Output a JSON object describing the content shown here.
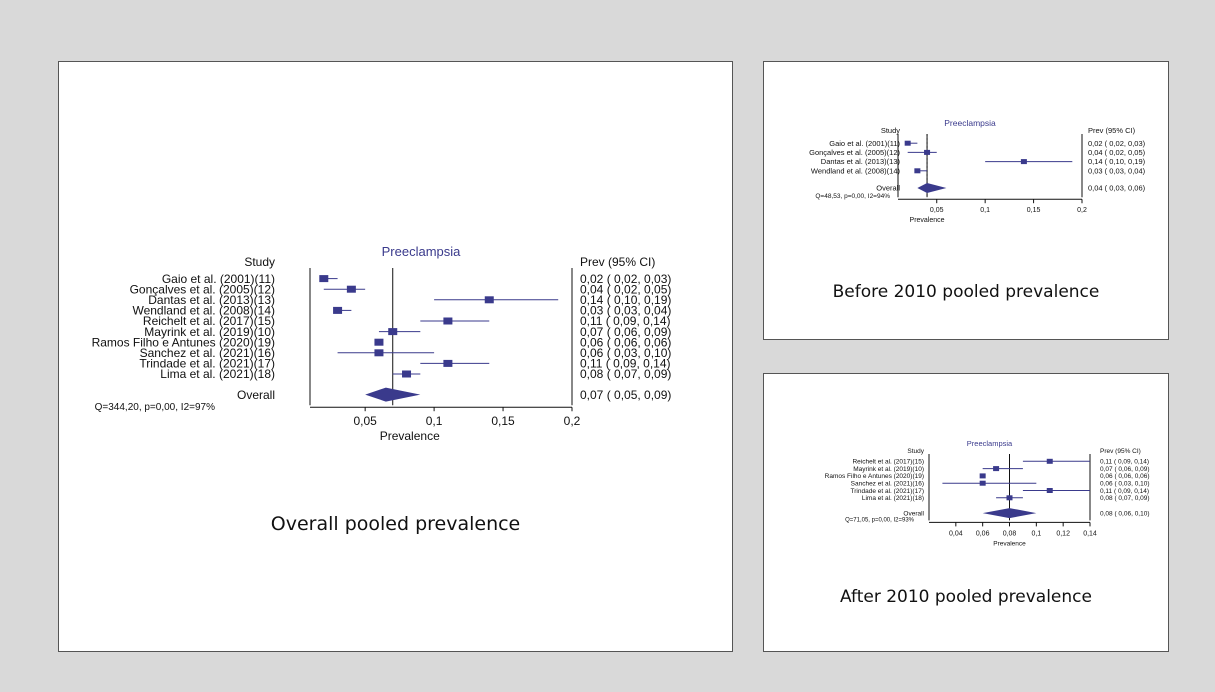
{
  "colors": {
    "page_bg": "#d9d9d9",
    "panel_bg": "#ffffff",
    "marker": "#3a3a8c",
    "title_text": "#3a3a8c",
    "ink": "#111111"
  },
  "chart_data": [
    {
      "type": "forest",
      "panel": "main",
      "title": "Preeclampsia",
      "caption": "Overall pooled prevalence",
      "study_header": "Study",
      "estimate_header": "Prev (95% CI)",
      "xlabel": "Prevalence",
      "xlim": [
        0.01,
        0.2
      ],
      "xticks": [
        0.05,
        0.1,
        0.15,
        0.2
      ],
      "xtick_labels": [
        "0,05",
        "0,1",
        "0,15",
        "0,2"
      ],
      "null_line": 0.07,
      "pooled_line": 0.065,
      "studies": [
        {
          "label": "Gaio et al. (2001)(11)",
          "est": 0.02,
          "lo": 0.02,
          "hi": 0.03,
          "ci_text": "0,02  ( 0,02, 0,03)"
        },
        {
          "label": "Gonçalves et al. (2005)(12)",
          "est": 0.04,
          "lo": 0.02,
          "hi": 0.05,
          "ci_text": "0,04  ( 0,02, 0,05)"
        },
        {
          "label": "Dantas et al. (2013)(13)",
          "est": 0.14,
          "lo": 0.1,
          "hi": 0.19,
          "ci_text": "0,14  ( 0,10, 0,19)"
        },
        {
          "label": "Wendland et al. (2008)(14)",
          "est": 0.03,
          "lo": 0.03,
          "hi": 0.04,
          "ci_text": "0,03  ( 0,03, 0,04)"
        },
        {
          "label": "Reichelt et al. (2017)(15)",
          "est": 0.11,
          "lo": 0.09,
          "hi": 0.14,
          "ci_text": "0,11  ( 0,09, 0,14)"
        },
        {
          "label": "Mayrink et al. (2019)(10)",
          "est": 0.07,
          "lo": 0.06,
          "hi": 0.09,
          "ci_text": "0,07  ( 0,06, 0,09)"
        },
        {
          "label": "Ramos Filho e Antunes (2020)(19)",
          "est": 0.06,
          "lo": 0.06,
          "hi": 0.06,
          "ci_text": "0,06  ( 0,06, 0,06)"
        },
        {
          "label": "Sanchez et al. (2021)(16)",
          "est": 0.06,
          "lo": 0.03,
          "hi": 0.1,
          "ci_text": "0,06  ( 0,03, 0,10)"
        },
        {
          "label": "Trindade et al. (2021)(17)",
          "est": 0.11,
          "lo": 0.09,
          "hi": 0.14,
          "ci_text": "0,11  ( 0,09, 0,14)"
        },
        {
          "label": "Lima et al. (2021)(18)",
          "est": 0.08,
          "lo": 0.07,
          "hi": 0.09,
          "ci_text": "0,08  ( 0,07, 0,09)"
        }
      ],
      "overall": {
        "label": "Overall",
        "est": 0.065,
        "lo": 0.05,
        "hi": 0.09,
        "ci_text": "0,07  ( 0,05, 0,09)"
      },
      "heterogeneity": "Q=344,20, p=0,00, I2=97%"
    },
    {
      "type": "forest",
      "panel": "before",
      "title": "Preeclampsia",
      "caption": "Before 2010 pooled prevalence",
      "study_header": "Study",
      "estimate_header": "Prev (95% CI)",
      "xlabel": "Prevalence",
      "xlim": [
        0.01,
        0.2
      ],
      "xticks": [
        0.05,
        0.1,
        0.15,
        0.2
      ],
      "xtick_labels": [
        "0,05",
        "0,1",
        "0,15",
        "0,2"
      ],
      "null_line": 0.04,
      "pooled_line": 0.04,
      "studies": [
        {
          "label": "Gaio et al. (2001)(11)",
          "est": 0.02,
          "lo": 0.02,
          "hi": 0.03,
          "ci_text": "0,02  ( 0,02, 0,03)"
        },
        {
          "label": "Gonçalves et al. (2005)(12)",
          "est": 0.04,
          "lo": 0.02,
          "hi": 0.05,
          "ci_text": "0,04  ( 0,02, 0,05)"
        },
        {
          "label": "Dantas et al. (2013)(13)",
          "est": 0.14,
          "lo": 0.1,
          "hi": 0.19,
          "ci_text": "0,14  ( 0,10, 0,19)"
        },
        {
          "label": "Wendland et al. (2008)(14)",
          "est": 0.03,
          "lo": 0.03,
          "hi": 0.04,
          "ci_text": "0,03  ( 0,03, 0,04)"
        }
      ],
      "overall": {
        "label": "Overall",
        "est": 0.04,
        "lo": 0.03,
        "hi": 0.06,
        "ci_text": "0,04  ( 0,03, 0,06)"
      },
      "heterogeneity": "Q=48,53, p=0,00, I2=94%"
    },
    {
      "type": "forest",
      "panel": "after",
      "title": "Preeclampsia",
      "caption": "After 2010 pooled prevalence",
      "study_header": "Study",
      "estimate_header": "Prev (95% CI)",
      "xlabel": "Prevalence",
      "xlim": [
        0.02,
        0.14
      ],
      "xticks": [
        0.04,
        0.06,
        0.08,
        0.1,
        0.12,
        0.14
      ],
      "xtick_labels": [
        "0,04",
        "0,06",
        "0,08",
        "0,1",
        "0,12",
        "0,14"
      ],
      "null_line": 0.08,
      "pooled_line": 0.08,
      "studies": [
        {
          "label": "Reichelt et al. (2017)(15)",
          "est": 0.11,
          "lo": 0.09,
          "hi": 0.14,
          "ci_text": "0,11  ( 0,09, 0,14)"
        },
        {
          "label": "Mayrink et al. (2019)(10)",
          "est": 0.07,
          "lo": 0.06,
          "hi": 0.09,
          "ci_text": "0,07  ( 0,06, 0,09)"
        },
        {
          "label": "Ramos Filho e Antunes (2020)(19)",
          "est": 0.06,
          "lo": 0.06,
          "hi": 0.06,
          "ci_text": "0,06  ( 0,06, 0,06)"
        },
        {
          "label": "Sanchez et al. (2021)(16)",
          "est": 0.06,
          "lo": 0.03,
          "hi": 0.1,
          "ci_text": "0,06  ( 0,03, 0,10)"
        },
        {
          "label": "Trindade et al. (2021)(17)",
          "est": 0.11,
          "lo": 0.09,
          "hi": 0.14,
          "ci_text": "0,11  ( 0,09, 0,14)"
        },
        {
          "label": "Lima et al. (2021)(18)",
          "est": 0.08,
          "lo": 0.07,
          "hi": 0.09,
          "ci_text": "0,08  ( 0,07, 0,09)"
        }
      ],
      "overall": {
        "label": "Overall",
        "est": 0.08,
        "lo": 0.06,
        "hi": 0.1,
        "ci_text": "0,08  ( 0,06, 0,10)"
      },
      "heterogeneity": "Q=71,05, p=0,00, I2=93%"
    }
  ]
}
